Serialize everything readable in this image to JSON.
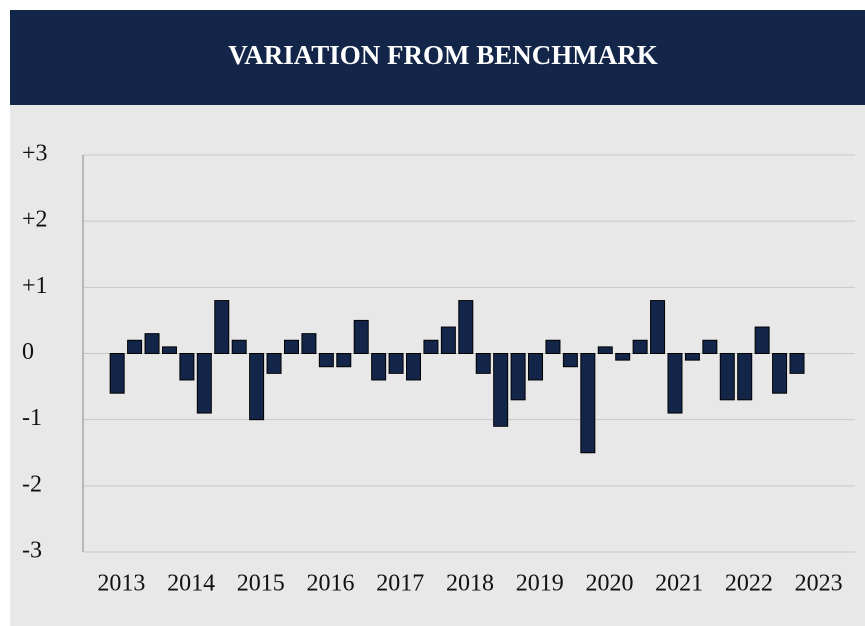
{
  "chart_data": {
    "type": "bar",
    "title": "VARIATION FROM BENCHMARK",
    "x": [
      2012.94,
      2013.19,
      2013.44,
      2013.69,
      2013.94,
      2014.19,
      2014.44,
      2014.69,
      2014.94,
      2015.19,
      2015.44,
      2015.69,
      2015.94,
      2016.19,
      2016.44,
      2016.69,
      2016.94,
      2017.19,
      2017.44,
      2017.69,
      2017.94,
      2018.19,
      2018.44,
      2018.69,
      2018.94,
      2019.19,
      2019.44,
      2019.69,
      2019.94,
      2020.19,
      2020.44,
      2020.69,
      2020.94,
      2021.19,
      2021.44,
      2021.69,
      2021.94,
      2022.19,
      2022.44,
      2022.69
    ],
    "values": [
      -0.6,
      0.2,
      0.3,
      0.1,
      -0.4,
      -0.9,
      0.8,
      0.2,
      -1.0,
      -0.3,
      0.2,
      0.3,
      -0.2,
      -0.2,
      0.5,
      -0.4,
      -0.3,
      -0.4,
      0.2,
      0.4,
      0.8,
      -0.3,
      -1.1,
      -0.7,
      -0.4,
      0.2,
      -0.2,
      -1.5,
      0.1,
      -0.1,
      0.2,
      0.8,
      -0.9,
      -0.1,
      0.2,
      -0.7,
      -0.7,
      0.4,
      -0.6,
      -0.3
    ],
    "color": "#13264a",
    "xlim": [
      2012.45,
      2023.45
    ],
    "xticks": [
      2013,
      2014,
      2015,
      2016,
      2017,
      2018,
      2019,
      2020,
      2021,
      2022,
      2023
    ],
    "ylim": [
      -3,
      3
    ],
    "yticks": [
      {
        "value": 3,
        "label": "+3"
      },
      {
        "value": 2,
        "label": "+2"
      },
      {
        "value": 1,
        "label": "+1"
      },
      0,
      -1,
      -2,
      -3
    ],
    "grid": true
  }
}
